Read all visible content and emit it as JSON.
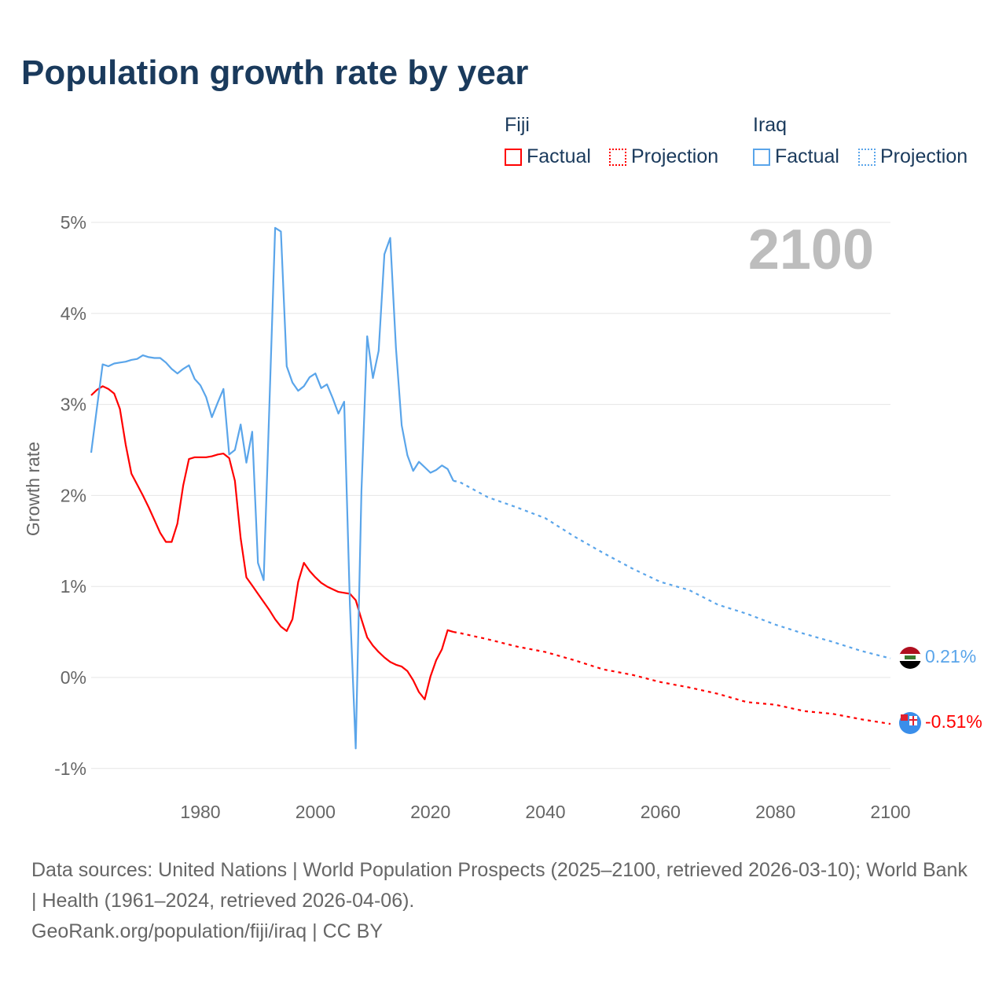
{
  "title": "Population growth rate by year",
  "legend": {
    "groups": [
      {
        "name": "Fiji",
        "color": "#ff0000",
        "factual": "Factual",
        "projection": "Projection"
      },
      {
        "name": "Iraq",
        "color": "#5aa5ea",
        "factual": "Factual",
        "projection": "Projection"
      }
    ]
  },
  "year_display": "2100",
  "end_labels": {
    "iraq": "0.21%",
    "fiji": "-0.51%"
  },
  "flags": {
    "iraq": "iraq-flag-icon",
    "fiji": "fiji-flag-icon"
  },
  "footer": {
    "line1": "Data sources: United Nations | World Population Prospects (2025–2100, retrieved 2026-03-10); World Bank | Health (1961–2024, retrieved 2026-04-06).",
    "line2": "GeoRank.org/population/fiji/iraq | CC BY"
  },
  "chart_data": {
    "type": "line",
    "title": "Population growth rate by year",
    "xlabel": "",
    "ylabel": "Growth rate",
    "xlim": [
      1961,
      2100
    ],
    "ylim": [
      -1,
      5
    ],
    "x_ticks": [
      1980,
      2000,
      2020,
      2040,
      2060,
      2080,
      2100
    ],
    "y_ticks": [
      {
        "v": -1,
        "label": "-1%"
      },
      {
        "v": 0,
        "label": "0%"
      },
      {
        "v": 1,
        "label": "1%"
      },
      {
        "v": 2,
        "label": "2%"
      },
      {
        "v": 3,
        "label": "3%"
      },
      {
        "v": 4,
        "label": "4%"
      },
      {
        "v": 5,
        "label": "5%"
      }
    ],
    "grid": true,
    "legend_position": "top-right",
    "series": [
      {
        "name": "Fiji",
        "color": "#ff0000",
        "factual": {
          "x": [
            1961,
            1962,
            1963,
            1964,
            1965,
            1966,
            1967,
            1968,
            1969,
            1970,
            1971,
            1972,
            1973,
            1974,
            1975,
            1976,
            1977,
            1978,
            1979,
            1980,
            1981,
            1982,
            1983,
            1984,
            1985,
            1986,
            1987,
            1988,
            1989,
            1990,
            1991,
            1992,
            1993,
            1994,
            1995,
            1996,
            1997,
            1998,
            1999,
            2000,
            2001,
            2002,
            2003,
            2004,
            2005,
            2006,
            2007,
            2008,
            2009,
            2010,
            2011,
            2012,
            2013,
            2014,
            2015,
            2016,
            2017,
            2018,
            2019,
            2020,
            2021,
            2022,
            2023,
            2024
          ],
          "y": [
            3.1,
            3.16,
            3.2,
            3.17,
            3.12,
            2.95,
            2.56,
            2.24,
            2.12,
            2.0,
            1.87,
            1.73,
            1.59,
            1.49,
            1.49,
            1.69,
            2.11,
            2.4,
            2.42,
            2.42,
            2.42,
            2.43,
            2.45,
            2.46,
            2.41,
            2.16,
            1.53,
            1.1,
            1.01,
            0.92,
            0.83,
            0.74,
            0.64,
            0.56,
            0.51,
            0.64,
            1.05,
            1.26,
            1.17,
            1.1,
            1.04,
            1.0,
            0.97,
            0.94,
            0.93,
            0.92,
            0.85,
            0.64,
            0.44,
            0.35,
            0.28,
            0.22,
            0.17,
            0.14,
            0.12,
            0.07,
            -0.03,
            -0.16,
            -0.24,
            0.01,
            0.19,
            0.31,
            0.52,
            0.5
          ]
        },
        "projection": {
          "x": [
            2024,
            2025,
            2030,
            2035,
            2040,
            2045,
            2050,
            2055,
            2060,
            2065,
            2070,
            2075,
            2080,
            2085,
            2090,
            2095,
            2100
          ],
          "y": [
            0.5,
            0.49,
            0.42,
            0.34,
            0.28,
            0.19,
            0.09,
            0.03,
            -0.05,
            -0.11,
            -0.18,
            -0.27,
            -0.3,
            -0.37,
            -0.4,
            -0.46,
            -0.51
          ]
        }
      },
      {
        "name": "Iraq",
        "color": "#5aa5ea",
        "factual": {
          "x": [
            1961,
            1962,
            1963,
            1964,
            1965,
            1966,
            1967,
            1968,
            1969,
            1970,
            1971,
            1972,
            1973,
            1974,
            1975,
            1976,
            1977,
            1978,
            1979,
            1980,
            1981,
            1982,
            1983,
            1984,
            1985,
            1986,
            1987,
            1988,
            1989,
            1990,
            1991,
            1992,
            1993,
            1994,
            1995,
            1996,
            1997,
            1998,
            1999,
            2000,
            2001,
            2002,
            2003,
            2004,
            2005,
            2006,
            2007,
            2008,
            2009,
            2010,
            2011,
            2012,
            2013,
            2014,
            2015,
            2016,
            2017,
            2018,
            2019,
            2020,
            2021,
            2022,
            2023,
            2024
          ],
          "y": [
            2.47,
            2.96,
            3.44,
            3.42,
            3.45,
            3.46,
            3.47,
            3.49,
            3.5,
            3.54,
            3.52,
            3.51,
            3.51,
            3.46,
            3.39,
            3.34,
            3.39,
            3.43,
            3.28,
            3.21,
            3.08,
            2.86,
            3.02,
            3.17,
            2.45,
            2.5,
            2.78,
            2.36,
            2.7,
            1.26,
            1.07,
            3.0,
            4.94,
            4.9,
            3.42,
            3.24,
            3.15,
            3.2,
            3.3,
            3.34,
            3.18,
            3.22,
            3.07,
            2.9,
            3.03,
            0.8,
            -0.78,
            2.05,
            3.75,
            3.29,
            3.59,
            4.65,
            4.83,
            3.62,
            2.77,
            2.44,
            2.27,
            2.37,
            2.31,
            2.25,
            2.28,
            2.33,
            2.29,
            2.16
          ]
        },
        "projection": {
          "x": [
            2024,
            2025,
            2030,
            2035,
            2040,
            2045,
            2050,
            2055,
            2060,
            2065,
            2070,
            2075,
            2080,
            2085,
            2090,
            2095,
            2100
          ],
          "y": [
            2.16,
            2.15,
            1.98,
            1.87,
            1.75,
            1.55,
            1.37,
            1.2,
            1.05,
            0.96,
            0.8,
            0.7,
            0.58,
            0.48,
            0.39,
            0.29,
            0.21
          ]
        }
      }
    ]
  }
}
